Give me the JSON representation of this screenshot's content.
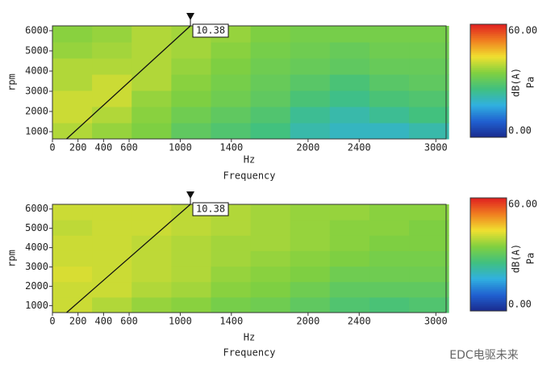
{
  "chart_data": [
    {
      "type": "heatmap",
      "x_label": "Hz",
      "x_title": "Frequency",
      "y_label": "rpm",
      "xlim": [
        0,
        3080
      ],
      "xticks": [
        0,
        200,
        400,
        600,
        1000,
        1400,
        2000,
        2400,
        3000
      ],
      "ylim": [
        640,
        6240
      ],
      "yticks": [
        1000,
        2000,
        3000,
        4000,
        5000,
        6000
      ],
      "x": [
        155,
        465,
        775,
        1085,
        1395,
        1705,
        2015,
        2325,
        2635,
        2945
      ],
      "y": [
        1040,
        1840,
        2640,
        3440,
        4240,
        5040,
        5840
      ],
      "z": [
        [
          38,
          36,
          34,
          30,
          28,
          26,
          22,
          20,
          20,
          22
        ],
        [
          40,
          38,
          35,
          32,
          30,
          28,
          24,
          22,
          24,
          26
        ],
        [
          40,
          40,
          36,
          34,
          32,
          30,
          27,
          25,
          27,
          28
        ],
        [
          38,
          40,
          38,
          35,
          33,
          31,
          29,
          27,
          29,
          30
        ],
        [
          38,
          38,
          38,
          36,
          34,
          32,
          31,
          30,
          31,
          31
        ],
        [
          36,
          37,
          38,
          37,
          35,
          33,
          32,
          31,
          32,
          32
        ],
        [
          35,
          36,
          38,
          37,
          36,
          34,
          33,
          33,
          33,
          33
        ]
      ],
      "zlim": [
        0,
        60
      ],
      "colorbar_ticks": [
        {
          "value": 60,
          "label": "60.00"
        },
        {
          "value": 0,
          "label": "0.00"
        }
      ],
      "colorbar_labels": [
        "dB(A)",
        "Pa"
      ],
      "colormap": [
        "#1a2a8c",
        "#2060d0",
        "#30b0e0",
        "#40c080",
        "#80d040",
        "#f0e030",
        "#f08020",
        "#e02020"
      ],
      "order": 10.38
    },
    {
      "type": "heatmap",
      "x_label": "Hz",
      "x_title": "Frequency",
      "y_label": "rpm",
      "xlim": [
        0,
        3080
      ],
      "xticks": [
        0,
        200,
        400,
        600,
        1000,
        1400,
        2000,
        2400,
        3000
      ],
      "ylim": [
        640,
        6240
      ],
      "yticks": [
        1000,
        2000,
        3000,
        4000,
        5000,
        6000
      ],
      "x": [
        155,
        465,
        775,
        1085,
        1395,
        1705,
        2015,
        2325,
        2635,
        2945
      ],
      "y": [
        1040,
        1840,
        2640,
        3440,
        4240,
        5040,
        5840
      ],
      "z": [
        [
          40,
          38,
          36,
          35,
          33,
          32,
          30,
          28,
          27,
          28
        ],
        [
          40,
          40,
          38,
          37,
          35,
          34,
          32,
          30,
          30,
          30
        ],
        [
          41,
          40,
          39,
          38,
          36,
          35,
          34,
          32,
          32,
          32
        ],
        [
          40,
          40,
          39,
          38,
          37,
          36,
          35,
          34,
          33,
          33
        ],
        [
          40,
          40,
          39,
          38,
          37,
          37,
          36,
          35,
          34,
          34
        ],
        [
          39,
          40,
          40,
          39,
          38,
          37,
          36,
          35,
          35,
          34
        ],
        [
          40,
          40,
          40,
          39,
          38,
          37,
          36,
          36,
          35,
          35
        ]
      ],
      "zlim": [
        0,
        60
      ],
      "colorbar_ticks": [
        {
          "value": 60,
          "label": "60.00"
        },
        {
          "value": 0,
          "label": "0.00"
        }
      ],
      "colorbar_labels": [
        "dB(A)",
        "Pa"
      ],
      "colormap": [
        "#1a2a8c",
        "#2060d0",
        "#30b0e0",
        "#40c080",
        "#80d040",
        "#f0e030",
        "#f08020",
        "#e02020"
      ],
      "order": 10.38
    }
  ],
  "watermark": "EDC电驱未来"
}
